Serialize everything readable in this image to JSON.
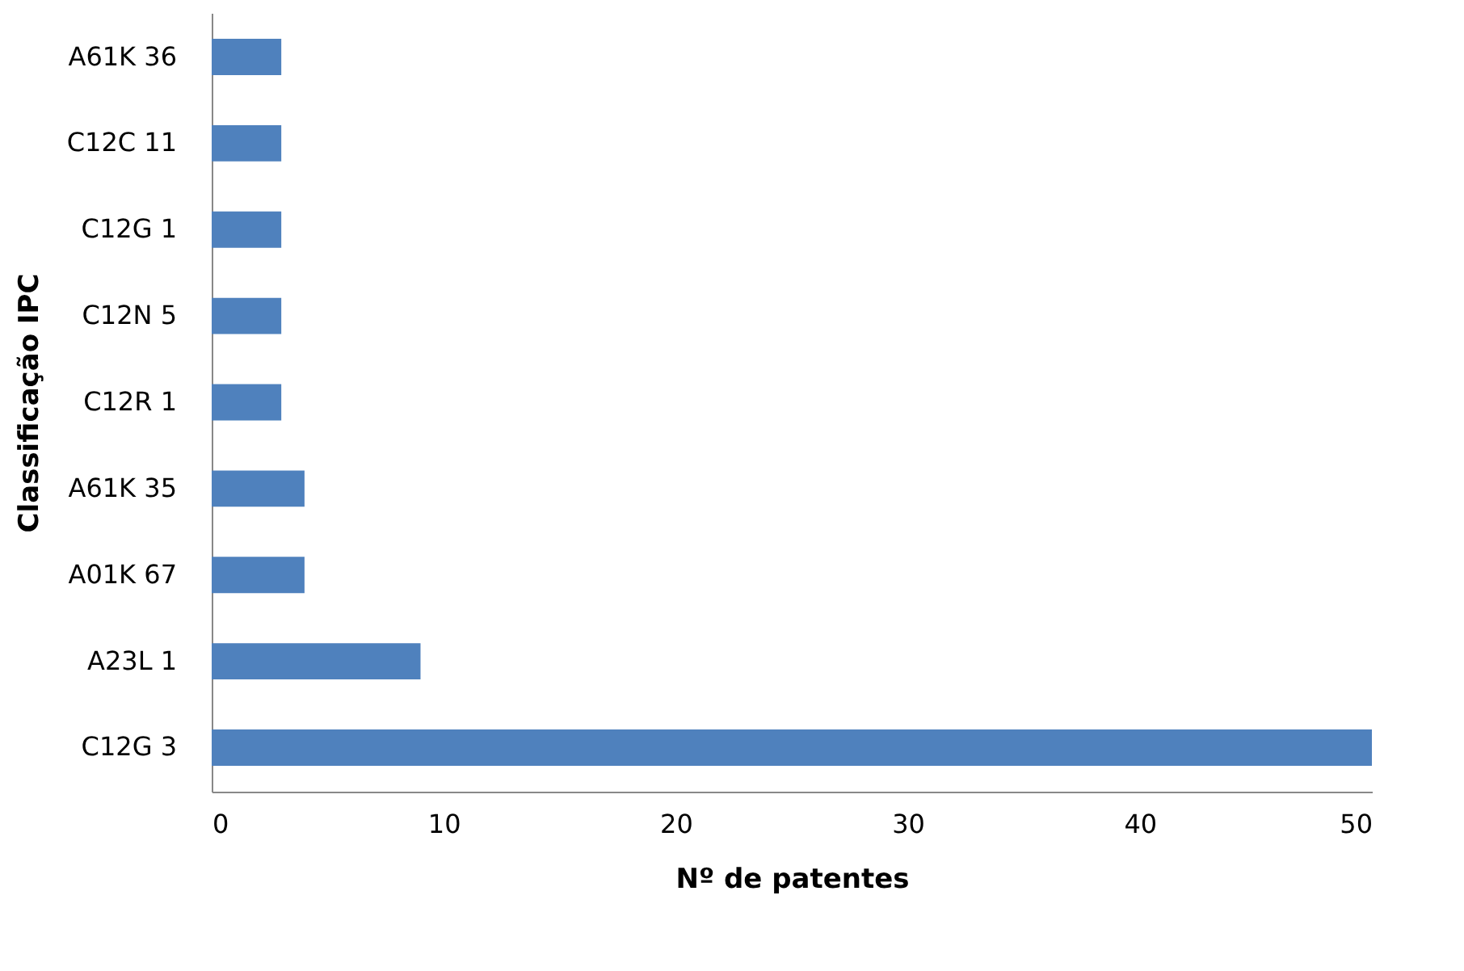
{
  "chart_data": {
    "type": "bar",
    "orientation": "horizontal",
    "xlabel": "Nº de patentes",
    "ylabel": "Classificação IPC",
    "categories": [
      "A61K 36",
      "C12C 11",
      "C12G 1",
      "C12N 5",
      "C12R 1",
      "A61K 35",
      "A01K 67",
      "A23L 1",
      "C12G 3"
    ],
    "values": [
      3,
      3,
      3,
      3,
      3,
      4,
      4,
      9,
      50
    ],
    "color": "#4f81bd",
    "xlim": [
      0,
      50
    ],
    "xticks": [
      0,
      10,
      20,
      30,
      40,
      50
    ],
    "grid": false
  }
}
